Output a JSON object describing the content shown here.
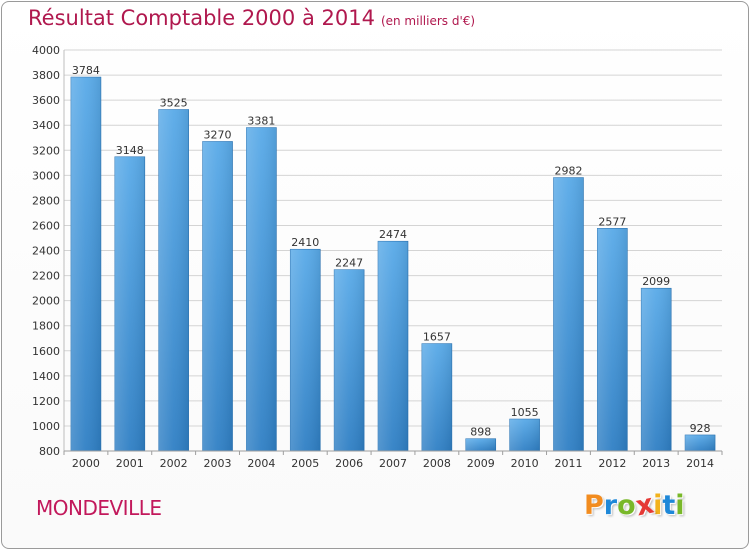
{
  "title": "Résultat Comptable 2000 à 2014",
  "subtitle": "(en milliers d'€)",
  "commune": "MONDEVILLE",
  "logo": {
    "text": "Proxiti",
    "letters": [
      "P",
      "r",
      "o",
      "x",
      "i",
      "t",
      "i"
    ],
    "colors": [
      "#f28c1f",
      "#1e88d8",
      "#79b829",
      "#e53935",
      "#f2b21c",
      "#1e88d8",
      "#79b829"
    ]
  },
  "colors": {
    "bar": "#4c9fe0",
    "bar_dark": "#2f7fc4",
    "title": "#b0184e",
    "grid": "#d4d4d4",
    "axis_text": "#333333"
  },
  "chart_data": {
    "type": "bar",
    "title": "Résultat Comptable 2000 à 2014",
    "subtitle": "(en milliers d'€)",
    "xlabel": "",
    "ylabel": "",
    "categories": [
      "2000",
      "2001",
      "2002",
      "2003",
      "2004",
      "2005",
      "2006",
      "2007",
      "2008",
      "2009",
      "2010",
      "2011",
      "2012",
      "2013",
      "2014"
    ],
    "values": [
      3784,
      3148,
      3525,
      3270,
      3381,
      2410,
      2247,
      2474,
      1657,
      898,
      1055,
      2982,
      2577,
      2099,
      928
    ],
    "ylim": [
      800,
      4000
    ],
    "yticks": [
      800,
      1000,
      1200,
      1400,
      1600,
      1800,
      2000,
      2200,
      2400,
      2600,
      2800,
      3000,
      3200,
      3400,
      3600,
      3800,
      4000
    ],
    "grid": true,
    "legend": "none"
  }
}
